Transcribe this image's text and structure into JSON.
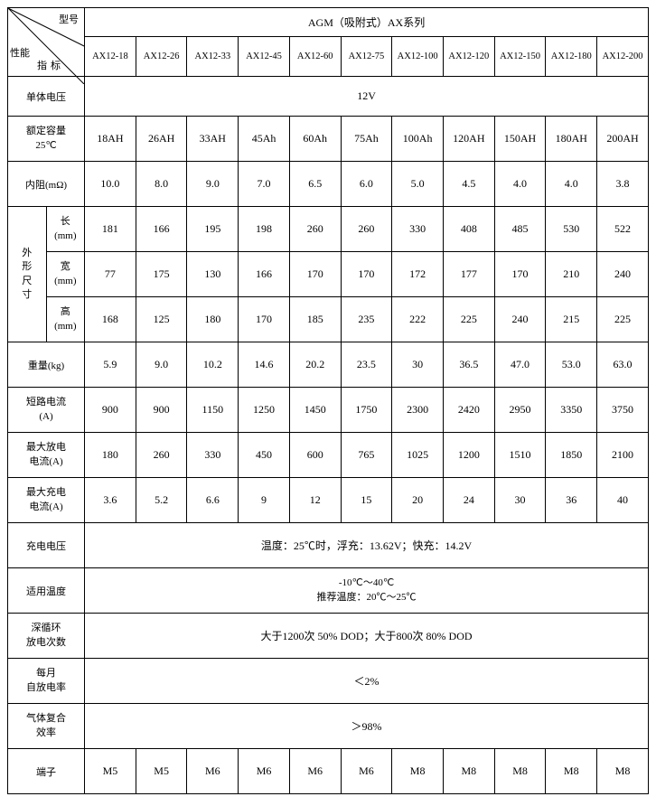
{
  "type": "table",
  "background_color": "#ffffff",
  "border_color": "#000000",
  "text_color": "#000000",
  "font_family": "SimSun",
  "cell_fontsize": 12,
  "header_fontsize": 11,
  "header": {
    "tl_top": "型号",
    "tl_left": "性能",
    "tl_bottom": "指标",
    "series_title": "AGM（吸附式）AX系列",
    "models": [
      "AX12-18",
      "AX12-26",
      "AX12-33",
      "AX12-45",
      "AX12-60",
      "AX12-75",
      "AX12-100",
      "AX12-120",
      "AX12-150",
      "AX12-180",
      "AX12-200"
    ]
  },
  "rows": {
    "voltage": {
      "label": "单体电压",
      "value": "12V"
    },
    "capacity": {
      "label": "额定容量\n25℃",
      "values": [
        "18AH",
        "26AH",
        "33AH",
        "45Ah",
        "60Ah",
        "75Ah",
        "100Ah",
        "120AH",
        "150AH",
        "180AH",
        "200AH"
      ]
    },
    "resistance": {
      "label": "内阻(mΩ)",
      "values": [
        "10.0",
        "8.0",
        "9.0",
        "7.0",
        "6.5",
        "6.0",
        "5.0",
        "4.5",
        "4.0",
        "4.0",
        "3.8"
      ]
    },
    "dims": {
      "group": "外\n形\n尺\n寸",
      "length": {
        "label": "长\n(mm)",
        "values": [
          "181",
          "166",
          "195",
          "198",
          "260",
          "260",
          "330",
          "408",
          "485",
          "530",
          "522"
        ]
      },
      "width": {
        "label": "宽\n(mm)",
        "values": [
          "77",
          "175",
          "130",
          "166",
          "170",
          "170",
          "172",
          "177",
          "170",
          "210",
          "240"
        ]
      },
      "height": {
        "label": "高\n(mm)",
        "values": [
          "168",
          "125",
          "180",
          "170",
          "185",
          "235",
          "222",
          "225",
          "240",
          "215",
          "225"
        ]
      }
    },
    "weight": {
      "label": "重量(kg)",
      "values": [
        "5.9",
        "9.0",
        "10.2",
        "14.6",
        "20.2",
        "23.5",
        "30",
        "36.5",
        "47.0",
        "53.0",
        "63.0"
      ]
    },
    "short_circuit": {
      "label": "短路电流\n(A)",
      "values": [
        "900",
        "900",
        "1150",
        "1250",
        "1450",
        "1750",
        "2300",
        "2420",
        "2950",
        "3350",
        "3750"
      ]
    },
    "max_discharge": {
      "label": "最大放电\n电流(A)",
      "values": [
        "180",
        "260",
        "330",
        "450",
        "600",
        "765",
        "1025",
        "1200",
        "1510",
        "1850",
        "2100"
      ]
    },
    "max_charge": {
      "label": "最大充电\n电流(A)",
      "values": [
        "3.6",
        "5.2",
        "6.6",
        "9",
        "12",
        "15",
        "20",
        "24",
        "30",
        "36",
        "40"
      ]
    },
    "charge_voltage": {
      "label": "充电电压",
      "value": "温度：25℃时，浮充：13.62V；快充：14.2V"
    },
    "temp_range": {
      "label": "适用温度",
      "value": "-10℃～40℃\n推荐温度：20℃～25℃"
    },
    "cycle": {
      "label": "深循环\n放电次数",
      "value": "大于1200次 50% DOD；大于800次 80% DOD"
    },
    "self_discharge": {
      "label": "每月\n自放电率",
      "value": "＜2%"
    },
    "gas_recomb": {
      "label": "气体复合\n效率",
      "value": "＞98%"
    },
    "terminal": {
      "label": "端子",
      "values": [
        "M5",
        "M5",
        "M6",
        "M6",
        "M6",
        "M6",
        "M8",
        "M8",
        "M8",
        "M8",
        "M8"
      ]
    }
  }
}
